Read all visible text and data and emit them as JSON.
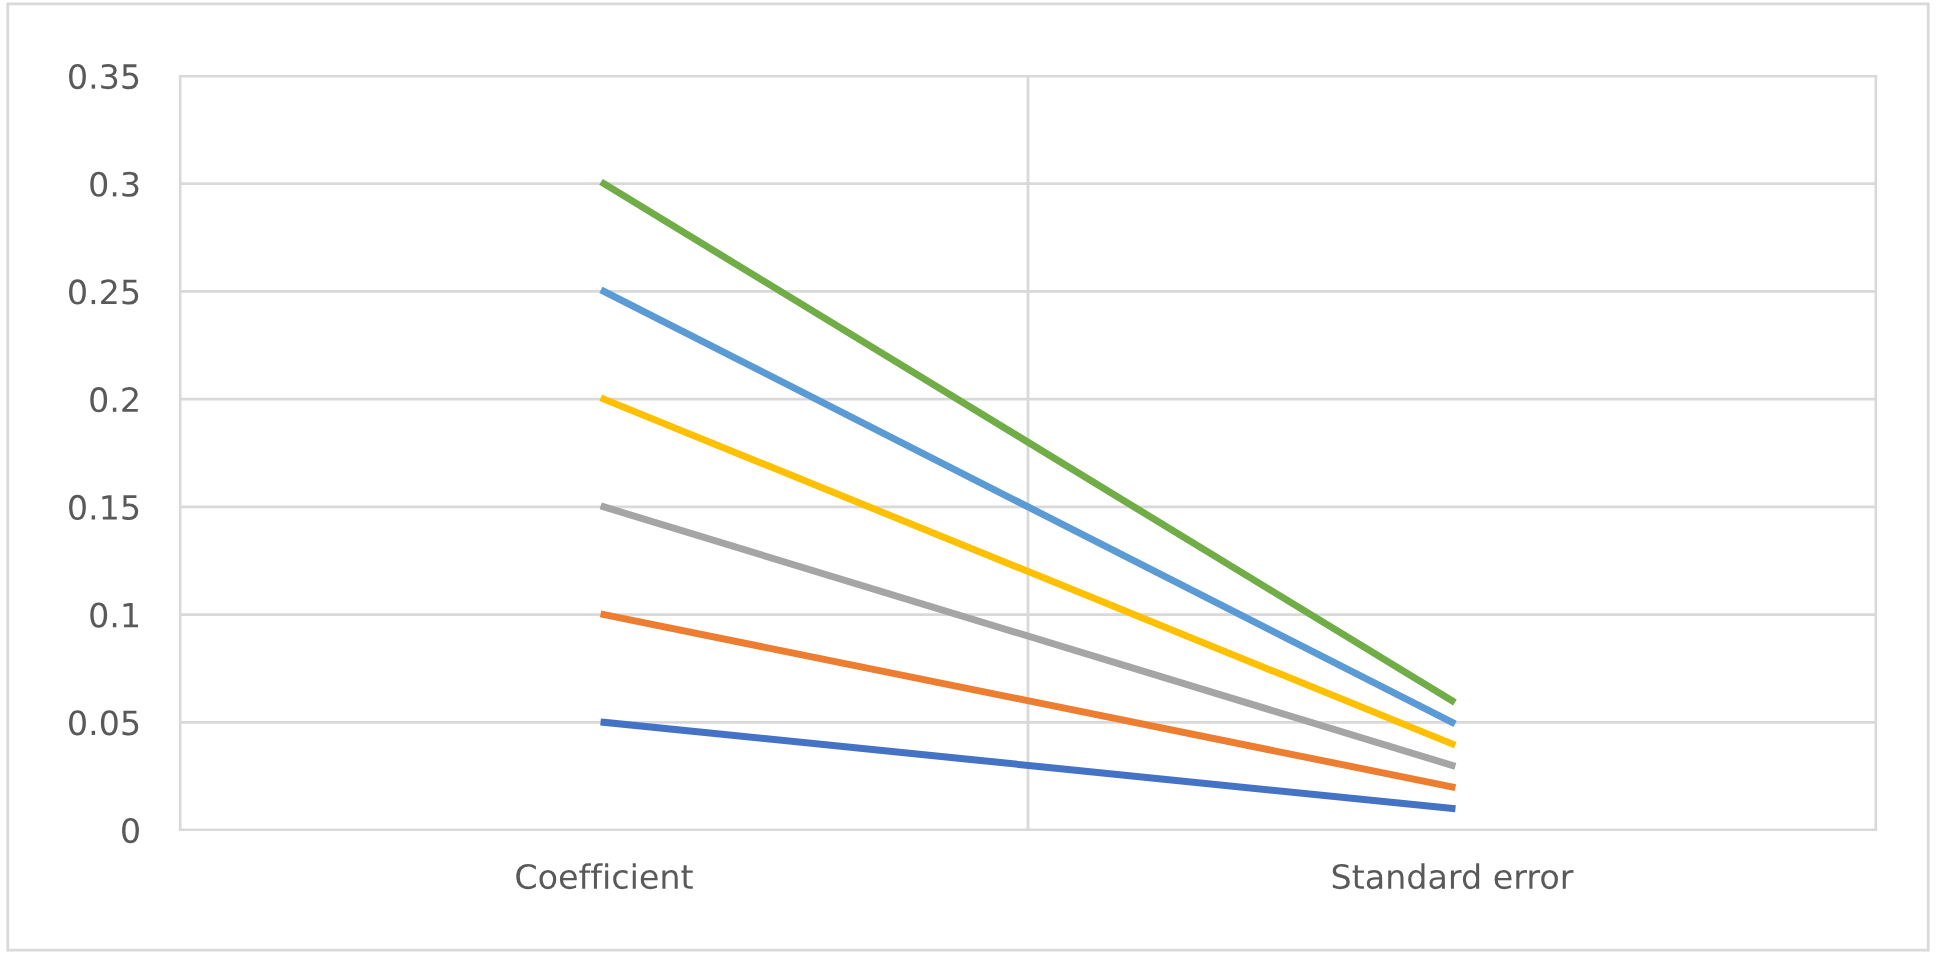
{
  "chart_data": {
    "type": "line",
    "categories": [
      "Coefficient",
      "Standard error"
    ],
    "series": [
      {
        "color": "#4472c4",
        "values": [
          0.05,
          0.01
        ]
      },
      {
        "color": "#ed7d31",
        "values": [
          0.1,
          0.02
        ]
      },
      {
        "color": "#a5a5a5",
        "values": [
          0.15,
          0.03
        ]
      },
      {
        "color": "#ffc000",
        "values": [
          0.2,
          0.04
        ]
      },
      {
        "color": "#5b9bd5",
        "values": [
          0.25,
          0.05
        ]
      },
      {
        "color": "#70ad47",
        "values": [
          0.3,
          0.06
        ]
      }
    ],
    "ylim": [
      0,
      0.35
    ],
    "yticks": [
      0,
      0.05,
      0.1,
      0.15,
      0.2,
      0.25,
      0.3,
      0.35
    ],
    "grid": true,
    "marker": "none",
    "line_style": "solid"
  }
}
